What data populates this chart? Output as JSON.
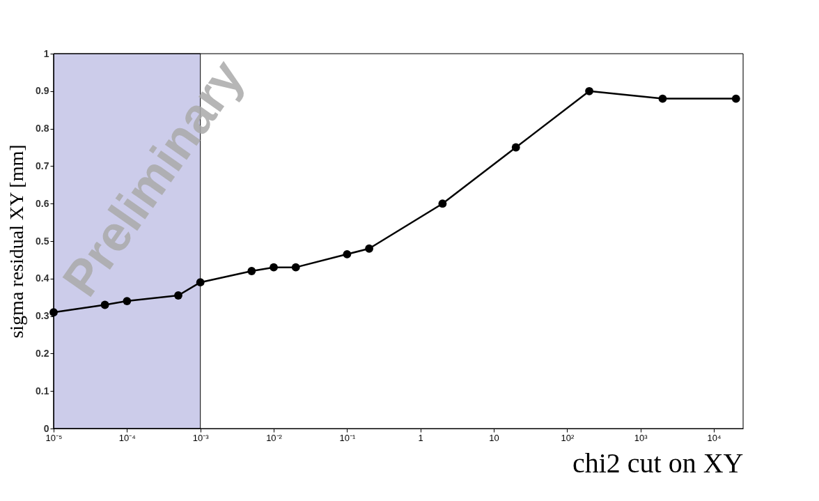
{
  "chart_data": {
    "type": "line",
    "xlabel": "chi2 cut on XY",
    "ylabel": "sigma residual XY [mm]",
    "x": [
      1e-05,
      5e-05,
      0.0001,
      0.0005,
      0.001,
      0.005,
      0.01,
      0.02,
      0.1,
      0.2,
      2,
      20,
      200,
      2000,
      20000
    ],
    "series": [
      {
        "color": "#000000",
        "values": [
          0.31,
          0.33,
          0.34,
          0.355,
          0.39,
          0.42,
          0.43,
          0.43,
          0.465,
          0.48,
          0.6,
          0.75,
          0.9,
          0.88,
          0.88
        ]
      }
    ],
    "log": "x",
    "xlim": [
      1e-05,
      25000
    ],
    "xticks": [
      {
        "value": 1e-05,
        "label": "10⁻⁵"
      },
      {
        "value": 0.0001,
        "label": "10⁻⁴"
      },
      {
        "value": 0.001,
        "label": "10⁻³"
      },
      {
        "value": 0.01,
        "label": "10⁻²"
      },
      {
        "value": 0.1,
        "label": "10⁻¹"
      },
      1,
      10,
      {
        "value": 100,
        "label": "10²"
      },
      {
        "value": 1000,
        "label": "10³"
      },
      {
        "value": 10000,
        "label": "10⁴"
      }
    ],
    "ylim": [
      0,
      1
    ],
    "yticks": [
      0,
      0.1,
      0.2,
      0.3,
      0.4,
      0.5,
      0.6,
      0.7,
      0.8,
      0.9,
      1
    ],
    "bands": [
      {
        "axis": "x",
        "from": 1e-05,
        "to": 0.001,
        "color": "#3333aa"
      }
    ],
    "annotations": [
      "Preliminary"
    ],
    "grid": false,
    "marker": "circle",
    "line_style": "solid"
  }
}
